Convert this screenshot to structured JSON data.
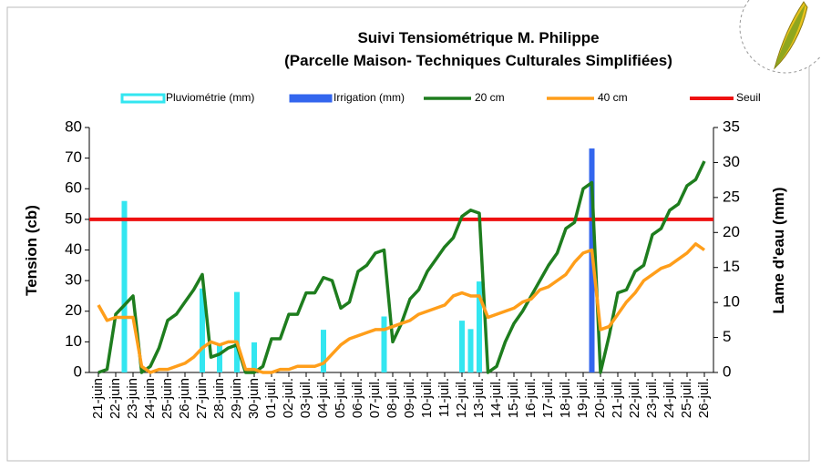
{
  "chart_data": {
    "type": "combo",
    "title": "Suivi Tensiométrique M. Philippe",
    "subtitle": "(Parcelle Maison- Techniques Culturales Simplifiées)",
    "y_label": "Tension (cb)",
    "y2_label": "Lame d'eau (mm)",
    "categories": [
      "21-juin",
      null,
      "22-juin",
      null,
      "23-juin",
      null,
      "24-juin",
      null,
      "25-juin",
      null,
      "26-juin",
      null,
      "27-juin",
      null,
      "28-juin",
      null,
      "29-juin",
      null,
      "30-juin",
      null,
      "01-juil.",
      null,
      "02-juil.",
      null,
      "03-juil.",
      null,
      "04-juil.",
      null,
      "05-juil.",
      null,
      "06-juil.",
      null,
      "07-juil.",
      null,
      "08-juil.",
      null,
      "09-juil.",
      null,
      "10-juil.",
      null,
      "11-juil.",
      null,
      "12-juil.",
      null,
      "13-juil.",
      null,
      "14-juil.",
      null,
      "15-juil.",
      null,
      "16-juil.",
      null,
      "17-juil.",
      null,
      "18-juil.",
      null,
      "19-juil.",
      null,
      "20-juil.",
      null,
      "21-juil.",
      null,
      "22-juil.",
      null,
      "23-juil.",
      null,
      "24-juil.",
      null,
      "25-juil.",
      null,
      "26-juil."
    ],
    "series": [
      {
        "name": "Pluviométrie (mm)",
        "kind": "bar",
        "axis": "y2",
        "color": "#33e6f0",
        "values": [
          0,
          0,
          0,
          24.5,
          0,
          0,
          0,
          0,
          0,
          0,
          0,
          0,
          12,
          0,
          4,
          0,
          11.5,
          0,
          4.3,
          0,
          0,
          0,
          0,
          0,
          0,
          0,
          6.1,
          0,
          0,
          0,
          0,
          0,
          0,
          8,
          0,
          0,
          0,
          0,
          0,
          0,
          0,
          0,
          7.4,
          6.2,
          13,
          0,
          0,
          0,
          0,
          0,
          0,
          0,
          0,
          0,
          0,
          0,
          0,
          0,
          0,
          0,
          0,
          0,
          0,
          0,
          0,
          0,
          0,
          0,
          0,
          0,
          0
        ]
      },
      {
        "name": "Irrigation (mm)",
        "kind": "bar",
        "axis": "y2",
        "color": "#3366ee",
        "values": [
          0,
          0,
          0,
          0,
          0,
          0,
          0,
          0,
          0,
          0,
          0,
          0,
          0,
          0,
          0,
          0,
          0,
          0,
          0,
          0,
          0,
          0,
          0,
          0,
          0,
          0,
          0,
          0,
          0,
          0,
          0,
          0,
          0,
          0,
          0,
          0,
          0,
          0,
          0,
          0,
          0,
          0,
          0,
          0,
          0,
          0,
          0,
          0,
          0,
          0,
          0,
          0,
          0,
          0,
          0,
          0,
          0,
          32,
          0,
          0,
          0,
          0,
          0,
          0,
          0,
          0,
          0,
          0,
          0,
          0,
          0
        ]
      },
      {
        "name": "20 cm",
        "kind": "line",
        "color": "#1e7d1e",
        "values": [
          0,
          1,
          19,
          22,
          25,
          0,
          2,
          8,
          17,
          19,
          23,
          27,
          32,
          5,
          6,
          8,
          9,
          0,
          0,
          2,
          11,
          11,
          19,
          19,
          26,
          26,
          31,
          30,
          21,
          23,
          33,
          35,
          39,
          40,
          10,
          16,
          24,
          27,
          33,
          37,
          41,
          44,
          51,
          53,
          52,
          0,
          2,
          10,
          16,
          20,
          25,
          30,
          35,
          39,
          47,
          49,
          60,
          62,
          0,
          12,
          26,
          27,
          33,
          35,
          45,
          47,
          53,
          55,
          61,
          63,
          69
        ]
      },
      {
        "name": "40 cm",
        "kind": "line",
        "color": "#ff9e1a",
        "values": [
          22,
          17,
          18,
          18,
          18,
          2,
          0,
          1,
          1,
          2,
          3,
          5,
          8,
          10,
          9,
          10,
          10,
          1,
          1,
          0,
          0,
          1,
          1,
          2,
          2,
          2,
          3,
          6,
          9,
          11,
          12,
          13,
          14,
          14,
          15,
          16,
          17,
          19,
          20,
          21,
          22,
          25,
          26,
          25,
          25,
          18,
          19,
          20,
          21,
          23,
          24,
          27,
          28,
          30,
          32,
          36,
          39,
          40,
          14,
          15,
          19,
          23,
          26,
          30,
          32,
          34,
          35,
          37,
          39,
          42,
          40
        ]
      }
    ],
    "threshold": {
      "name": "Seuil",
      "value": 50,
      "color": "#ee1111"
    },
    "ylim": [
      0,
      80
    ],
    "yticks": [
      0,
      10,
      20,
      30,
      40,
      50,
      60,
      70,
      80
    ],
    "y2lim": [
      0,
      35
    ],
    "y2ticks": [
      0,
      5,
      10,
      15,
      20,
      25,
      30,
      35
    ]
  }
}
